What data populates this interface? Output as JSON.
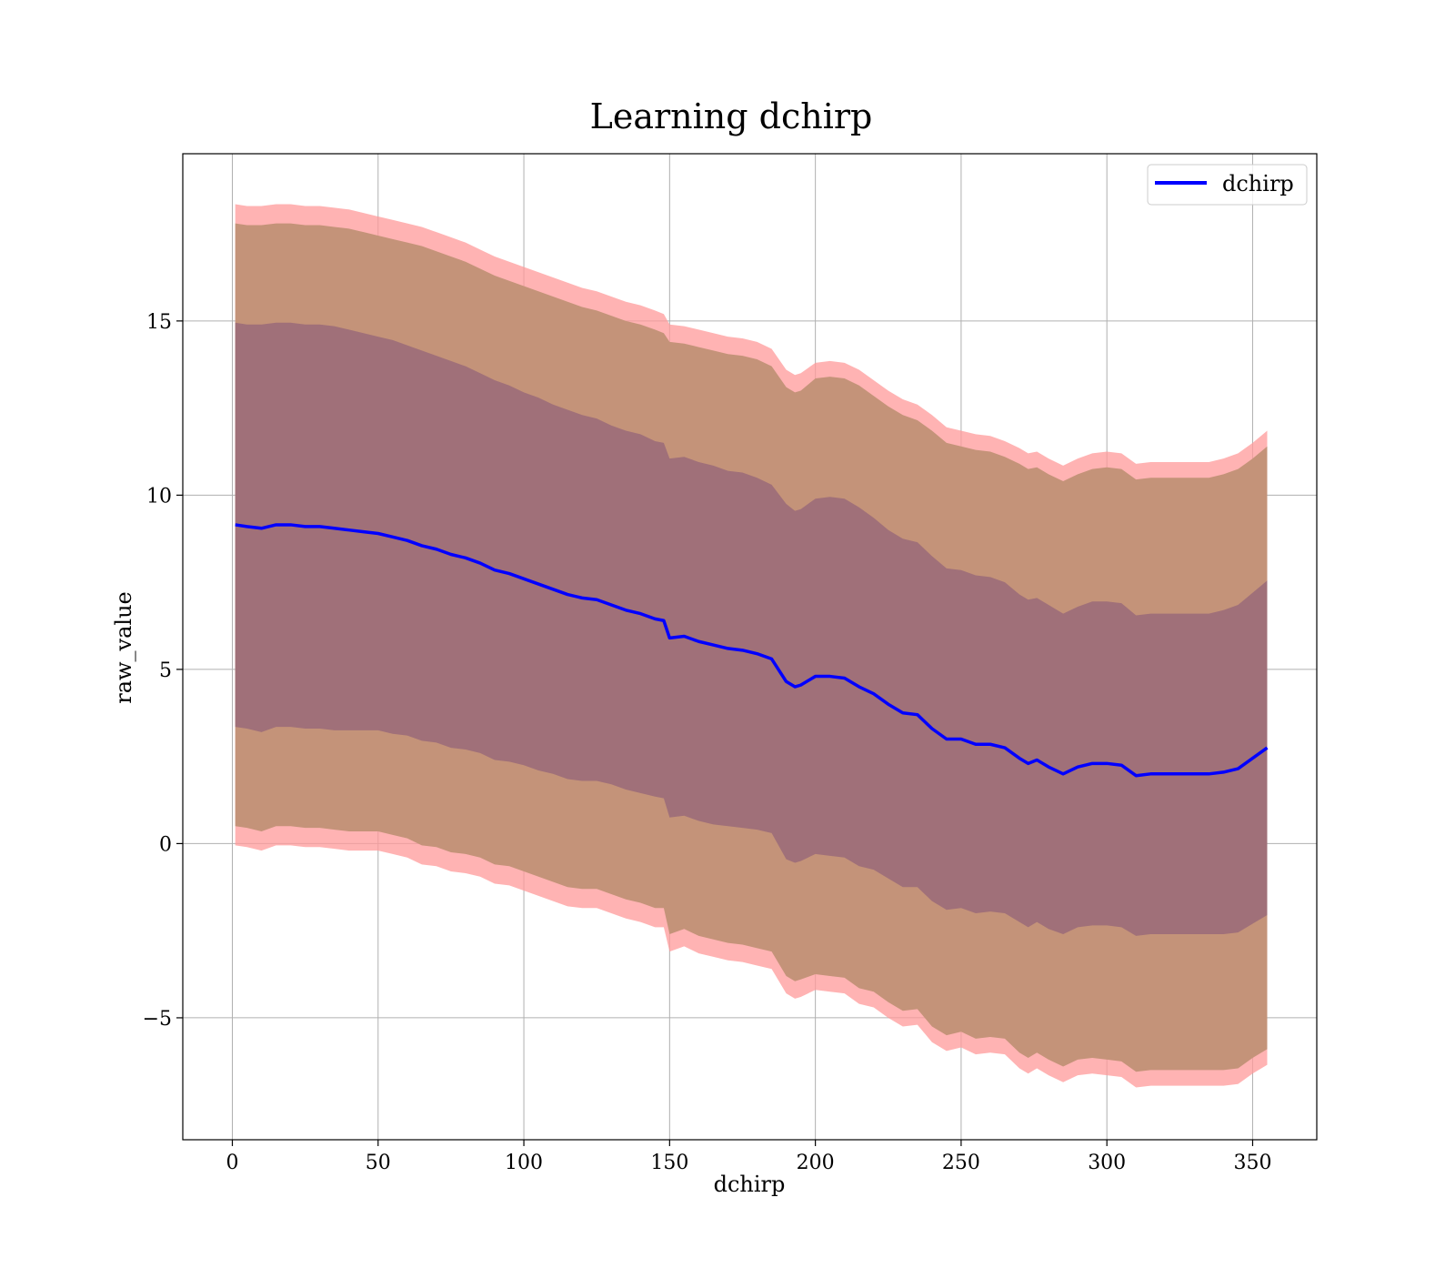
{
  "chart_data": {
    "type": "line",
    "title": "Learning dchirp",
    "xlabel": "dchirp",
    "ylabel": "raw_value",
    "xlim": [
      -17,
      372
    ],
    "ylim": [
      -8.5,
      19.8
    ],
    "xticks": [
      0,
      50,
      100,
      150,
      200,
      250,
      300,
      350
    ],
    "xtick_labels": [
      "0",
      "50",
      "100",
      "150",
      "200",
      "250",
      "300",
      "350"
    ],
    "yticks": [
      -5,
      0,
      5,
      10,
      15
    ],
    "ytick_labels": [
      "−5",
      "0",
      "5",
      "10",
      "15"
    ],
    "grid": true,
    "legend": {
      "position": "top-right",
      "entries": [
        "dchirp"
      ]
    },
    "colors": {
      "line": "#0000ff",
      "band_outer": "#ff9999",
      "band_middle": "#c49379",
      "band_inner": "#a07079",
      "grid": "#b0b0b0"
    },
    "series": [
      {
        "name": "dchirp",
        "x": [
          1,
          5,
          10,
          15,
          20,
          25,
          30,
          35,
          40,
          45,
          50,
          55,
          60,
          65,
          70,
          75,
          80,
          85,
          90,
          95,
          100,
          105,
          110,
          115,
          120,
          125,
          130,
          135,
          140,
          145,
          148,
          150,
          155,
          160,
          165,
          170,
          175,
          180,
          185,
          190,
          193,
          195,
          200,
          205,
          210,
          215,
          220,
          225,
          230,
          235,
          240,
          245,
          250,
          255,
          260,
          265,
          270,
          273,
          276,
          280,
          285,
          290,
          295,
          300,
          305,
          310,
          315,
          320,
          325,
          330,
          335,
          340,
          345,
          350,
          355
        ],
        "values": [
          9.15,
          9.1,
          9.05,
          9.15,
          9.15,
          9.1,
          9.1,
          9.05,
          9.0,
          8.95,
          8.9,
          8.8,
          8.7,
          8.55,
          8.45,
          8.3,
          8.2,
          8.05,
          7.85,
          7.75,
          7.6,
          7.45,
          7.3,
          7.15,
          7.05,
          7.0,
          6.85,
          6.7,
          6.6,
          6.45,
          6.4,
          5.9,
          5.95,
          5.8,
          5.7,
          5.6,
          5.55,
          5.45,
          5.3,
          4.65,
          4.5,
          4.55,
          4.8,
          4.8,
          4.75,
          4.5,
          4.3,
          4.0,
          3.75,
          3.7,
          3.3,
          3.0,
          3.0,
          2.85,
          2.85,
          2.75,
          2.45,
          2.3,
          2.4,
          2.2,
          2.0,
          2.2,
          2.3,
          2.3,
          2.25,
          1.95,
          2.0,
          2.0,
          2.0,
          2.0,
          2.0,
          2.05,
          2.15,
          2.45,
          2.75
        ]
      },
      {
        "name": "outer band upper",
        "values": [
          18.35,
          18.3,
          18.3,
          18.35,
          18.35,
          18.3,
          18.3,
          18.25,
          18.2,
          18.1,
          18.0,
          17.9,
          17.8,
          17.7,
          17.55,
          17.4,
          17.25,
          17.05,
          16.85,
          16.7,
          16.55,
          16.4,
          16.25,
          16.1,
          15.95,
          15.85,
          15.7,
          15.55,
          15.45,
          15.3,
          15.2,
          14.9,
          14.85,
          14.75,
          14.65,
          14.55,
          14.5,
          14.4,
          14.2,
          13.6,
          13.45,
          13.5,
          13.8,
          13.85,
          13.8,
          13.6,
          13.3,
          13.0,
          12.75,
          12.6,
          12.3,
          11.95,
          11.85,
          11.75,
          11.7,
          11.55,
          11.35,
          11.2,
          11.25,
          11.05,
          10.85,
          11.05,
          11.2,
          11.25,
          11.2,
          10.9,
          10.95,
          10.95,
          10.95,
          10.95,
          10.95,
          11.05,
          11.2,
          11.5,
          11.85
        ]
      },
      {
        "name": "middle band upper",
        "values": [
          17.8,
          17.75,
          17.75,
          17.8,
          17.8,
          17.75,
          17.75,
          17.7,
          17.65,
          17.55,
          17.45,
          17.35,
          17.25,
          17.15,
          17.0,
          16.85,
          16.7,
          16.5,
          16.3,
          16.15,
          16.0,
          15.85,
          15.7,
          15.55,
          15.4,
          15.3,
          15.15,
          15.0,
          14.9,
          14.75,
          14.65,
          14.4,
          14.35,
          14.25,
          14.15,
          14.05,
          14.0,
          13.9,
          13.7,
          13.1,
          12.95,
          13.0,
          13.35,
          13.4,
          13.35,
          13.15,
          12.85,
          12.55,
          12.3,
          12.15,
          11.85,
          11.5,
          11.4,
          11.3,
          11.25,
          11.1,
          10.9,
          10.75,
          10.8,
          10.6,
          10.4,
          10.6,
          10.75,
          10.8,
          10.75,
          10.45,
          10.5,
          10.5,
          10.5,
          10.5,
          10.5,
          10.6,
          10.75,
          11.05,
          11.4
        ]
      },
      {
        "name": "inner band upper",
        "values": [
          14.95,
          14.9,
          14.9,
          14.95,
          14.95,
          14.9,
          14.9,
          14.85,
          14.75,
          14.65,
          14.55,
          14.45,
          14.3,
          14.15,
          14.0,
          13.85,
          13.7,
          13.5,
          13.3,
          13.15,
          12.95,
          12.8,
          12.6,
          12.45,
          12.3,
          12.2,
          12.0,
          11.85,
          11.75,
          11.55,
          11.5,
          11.05,
          11.1,
          10.95,
          10.85,
          10.7,
          10.65,
          10.5,
          10.3,
          9.75,
          9.55,
          9.6,
          9.9,
          9.95,
          9.9,
          9.65,
          9.35,
          9.0,
          8.75,
          8.65,
          8.25,
          7.9,
          7.85,
          7.7,
          7.65,
          7.5,
          7.15,
          7.0,
          7.05,
          6.85,
          6.6,
          6.8,
          6.95,
          6.95,
          6.9,
          6.55,
          6.6,
          6.6,
          6.6,
          6.6,
          6.6,
          6.7,
          6.85,
          7.2,
          7.55
        ]
      }
    ]
  }
}
